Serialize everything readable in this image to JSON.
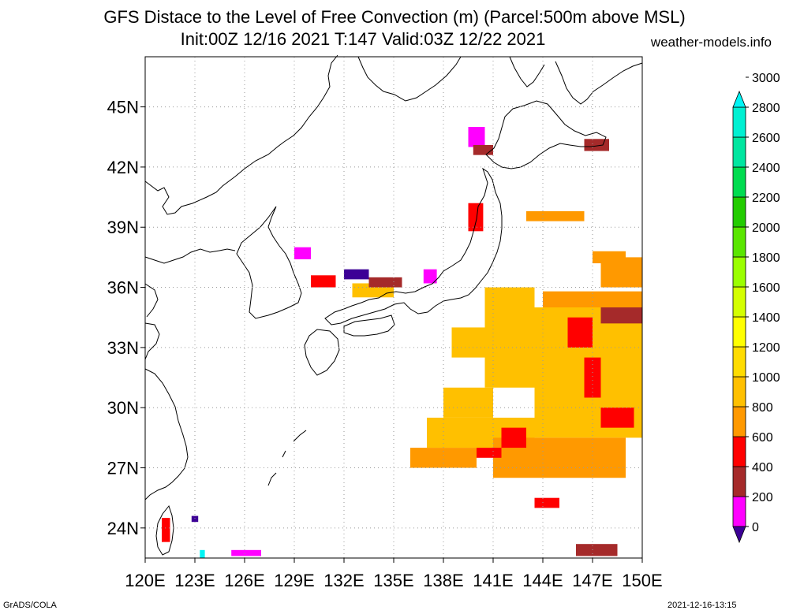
{
  "title": {
    "line1": "GFS Distace to the Level of Free Convection (m) (Parcel:500m above MSL)",
    "line2": "Init:00Z 12/16 2021 T:147 Valid:03Z 12/22 2021",
    "site": "weather-models.info"
  },
  "map": {
    "region": "Japan / Northwest Pacific",
    "lon_range": [
      120,
      150
    ],
    "lat_range": [
      22.5,
      47.5
    ],
    "grid": "dotted",
    "lat_ticks": [
      "24N",
      "27N",
      "30N",
      "33N",
      "36N",
      "39N",
      "42N",
      "45N"
    ],
    "lon_ticks": [
      "120E",
      "123E",
      "126E",
      "129E",
      "132E",
      "135E",
      "138E",
      "141E",
      "144E",
      "147E",
      "150E"
    ]
  },
  "legend": {
    "labels": [
      "0",
      "200",
      "400",
      "600",
      "800",
      "1000",
      "1200",
      "1400",
      "1600",
      "1800",
      "2000",
      "2200",
      "2400",
      "2600",
      "2800",
      "3000"
    ],
    "colors": [
      "#3c0096",
      "#ff00ff",
      "#a52a2a",
      "#ff0000",
      "#ff9900",
      "#ffc000",
      "#ffdc00",
      "#ffff00",
      "#d4ff00",
      "#9bff00",
      "#5ae600",
      "#22cc00",
      "#00dc50",
      "#00e6a0",
      "#00f0d2",
      "#00f5f5"
    ]
  },
  "footer": {
    "left": "GrADS/COLA",
    "right": "2021-12-16-13:15"
  }
}
